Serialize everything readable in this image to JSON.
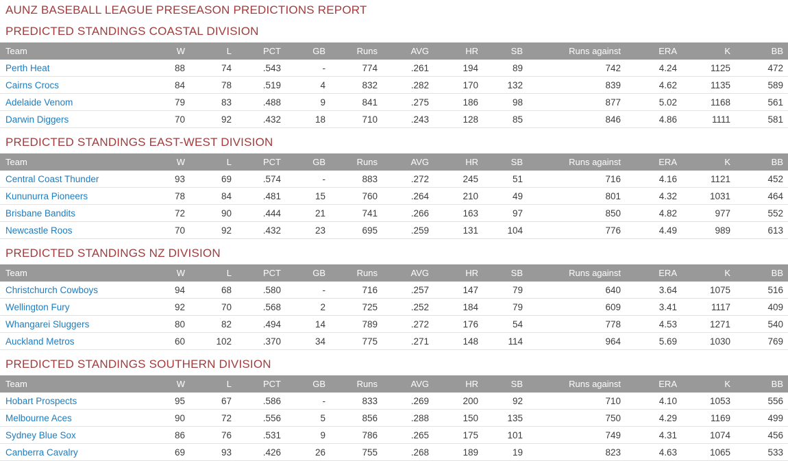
{
  "report_title": "AUNZ BASEBALL LEAGUE PRESEASON PREDICTIONS REPORT",
  "columns": [
    "Team",
    "W",
    "L",
    "PCT",
    "GB",
    "Runs",
    "AVG",
    "HR",
    "SB",
    "Runs against",
    "ERA",
    "K",
    "BB"
  ],
  "colors": {
    "heading_red": "#a23c3c",
    "header_bg": "#999999",
    "header_text": "#fdfdfd",
    "team_link_blue": "#1b7dc1",
    "cell_text": "#3c3c3c",
    "row_divider": "#e2e2e2",
    "page_bg": "#ffffff"
  },
  "sections": [
    {
      "title": "PREDICTED STANDINGS COASTAL DIVISION",
      "rows": [
        [
          "Perth Heat",
          "88",
          "74",
          ".543",
          "-",
          "774",
          ".261",
          "194",
          "89",
          "742",
          "4.24",
          "1125",
          "472"
        ],
        [
          "Cairns Crocs",
          "84",
          "78",
          ".519",
          "4",
          "832",
          ".282",
          "170",
          "132",
          "839",
          "4.62",
          "1135",
          "589"
        ],
        [
          "Adelaide Venom",
          "79",
          "83",
          ".488",
          "9",
          "841",
          ".275",
          "186",
          "98",
          "877",
          "5.02",
          "1168",
          "561"
        ],
        [
          "Darwin Diggers",
          "70",
          "92",
          ".432",
          "18",
          "710",
          ".243",
          "128",
          "85",
          "846",
          "4.86",
          "1111",
          "581"
        ]
      ]
    },
    {
      "title": "PREDICTED STANDINGS EAST-WEST DIVISION",
      "rows": [
        [
          "Central Coast Thunder",
          "93",
          "69",
          ".574",
          "-",
          "883",
          ".272",
          "245",
          "51",
          "716",
          "4.16",
          "1121",
          "452"
        ],
        [
          "Kununurra Pioneers",
          "78",
          "84",
          ".481",
          "15",
          "760",
          ".264",
          "210",
          "49",
          "801",
          "4.32",
          "1031",
          "464"
        ],
        [
          "Brisbane Bandits",
          "72",
          "90",
          ".444",
          "21",
          "741",
          ".266",
          "163",
          "97",
          "850",
          "4.82",
          "977",
          "552"
        ],
        [
          "Newcastle Roos",
          "70",
          "92",
          ".432",
          "23",
          "695",
          ".259",
          "131",
          "104",
          "776",
          "4.49",
          "989",
          "613"
        ]
      ]
    },
    {
      "title": "PREDICTED STANDINGS NZ DIVISION",
      "rows": [
        [
          "Christchurch Cowboys",
          "94",
          "68",
          ".580",
          "-",
          "716",
          ".257",
          "147",
          "79",
          "640",
          "3.64",
          "1075",
          "516"
        ],
        [
          "Wellington Fury",
          "92",
          "70",
          ".568",
          "2",
          "725",
          ".252",
          "184",
          "79",
          "609",
          "3.41",
          "1117",
          "409"
        ],
        [
          "Whangarei Sluggers",
          "80",
          "82",
          ".494",
          "14",
          "789",
          ".272",
          "176",
          "54",
          "778",
          "4.53",
          "1271",
          "540"
        ],
        [
          "Auckland Metros",
          "60",
          "102",
          ".370",
          "34",
          "775",
          ".271",
          "148",
          "114",
          "964",
          "5.69",
          "1030",
          "769"
        ]
      ]
    },
    {
      "title": "PREDICTED STANDINGS SOUTHERN DIVISION",
      "rows": [
        [
          "Hobart Prospects",
          "95",
          "67",
          ".586",
          "-",
          "833",
          ".269",
          "200",
          "92",
          "710",
          "4.10",
          "1053",
          "556"
        ],
        [
          "Melbourne Aces",
          "90",
          "72",
          ".556",
          "5",
          "856",
          ".288",
          "150",
          "135",
          "750",
          "4.29",
          "1169",
          "499"
        ],
        [
          "Sydney Blue Sox",
          "86",
          "76",
          ".531",
          "9",
          "786",
          ".265",
          "175",
          "101",
          "749",
          "4.31",
          "1074",
          "456"
        ],
        [
          "Canberra Cavalry",
          "69",
          "93",
          ".426",
          "26",
          "755",
          ".268",
          "189",
          "19",
          "823",
          "4.63",
          "1065",
          "533"
        ]
      ]
    }
  ]
}
